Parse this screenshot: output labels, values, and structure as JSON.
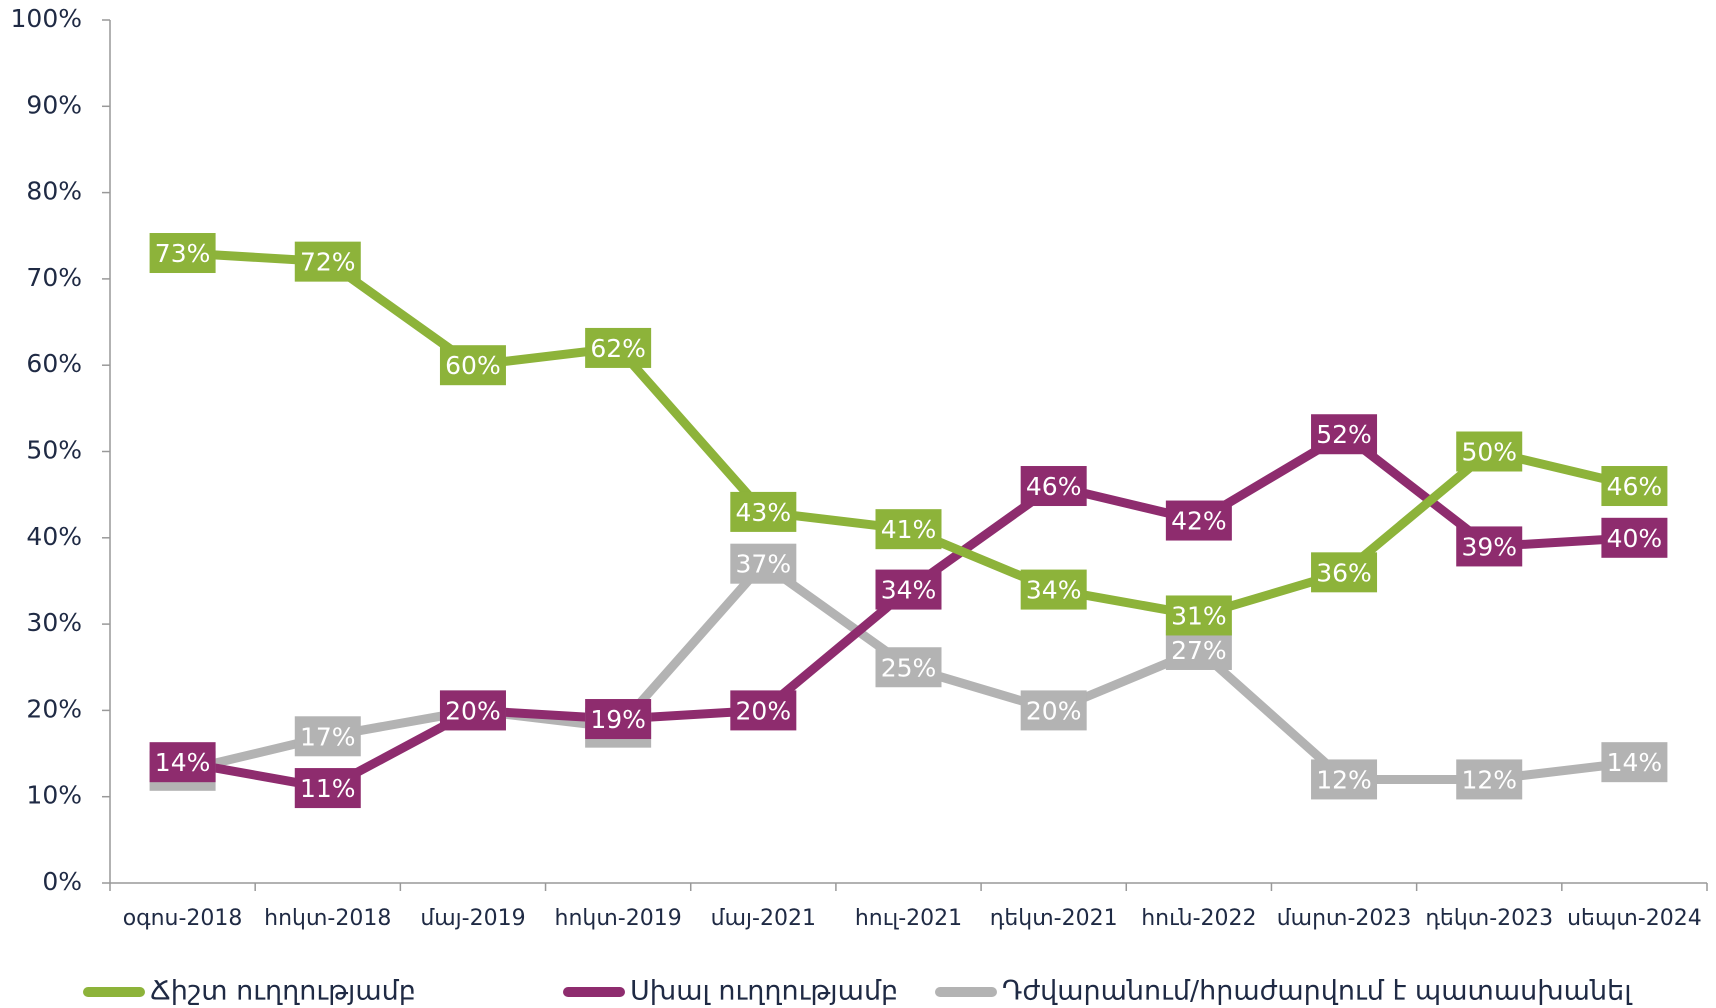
{
  "chart_data": {
    "type": "line",
    "categories": [
      "օգոս-2018",
      "հոկտ-2018",
      "մայ-2019",
      "հոկտ-2019",
      "մայ-2021",
      "հուլ-2021",
      "դեկտ-2021",
      "հուն-2022",
      "մարտ-2023",
      "դեկտ-2023",
      "սեպտ-2024"
    ],
    "series": [
      {
        "name": "Ճիշտ ուղղությամբ",
        "color": "#8db33a",
        "values": [
          73,
          72,
          60,
          62,
          43,
          41,
          34,
          31,
          36,
          50,
          46
        ],
        "value_labels": [
          "73%",
          "72%",
          "60%",
          "62%",
          "43%",
          "41%",
          "34%",
          "31%",
          "36%",
          "50%",
          "46%"
        ]
      },
      {
        "name": "Սխալ ուղղությամբ",
        "color": "#8e2c6e",
        "values": [
          14,
          11,
          20,
          19,
          20,
          34,
          46,
          42,
          52,
          39,
          40
        ],
        "value_labels": [
          "14%",
          "11%",
          "20%",
          "19%",
          "20%",
          "34%",
          "46%",
          "42%",
          "52%",
          "39%",
          "40%"
        ]
      },
      {
        "name": "Դժվարանում/հրաժարվում է պատասխանել",
        "color": "#b3b3b3",
        "values": [
          13,
          17,
          20,
          18,
          37,
          25,
          20,
          27,
          12,
          12,
          14
        ],
        "value_labels": [
          "13%",
          "17%",
          "20%",
          "18%",
          "37%",
          "25%",
          "20%",
          "27%",
          "12%",
          "12%",
          "14%"
        ]
      }
    ],
    "ylim": [
      0,
      100
    ],
    "yticks": [
      {
        "value": 0,
        "label": "0%"
      },
      {
        "value": 10,
        "label": "10%"
      },
      {
        "value": 20,
        "label": "20%"
      },
      {
        "value": 30,
        "label": "30%"
      },
      {
        "value": 40,
        "label": "40%"
      },
      {
        "value": 50,
        "label": "50%"
      },
      {
        "value": 60,
        "label": "60%"
      },
      {
        "value": 70,
        "label": "70%"
      },
      {
        "value": 80,
        "label": "80%"
      },
      {
        "value": 90,
        "label": "90%"
      },
      {
        "value": 100,
        "label": "100%"
      }
    ],
    "grid": false,
    "legend": "bottom"
  }
}
